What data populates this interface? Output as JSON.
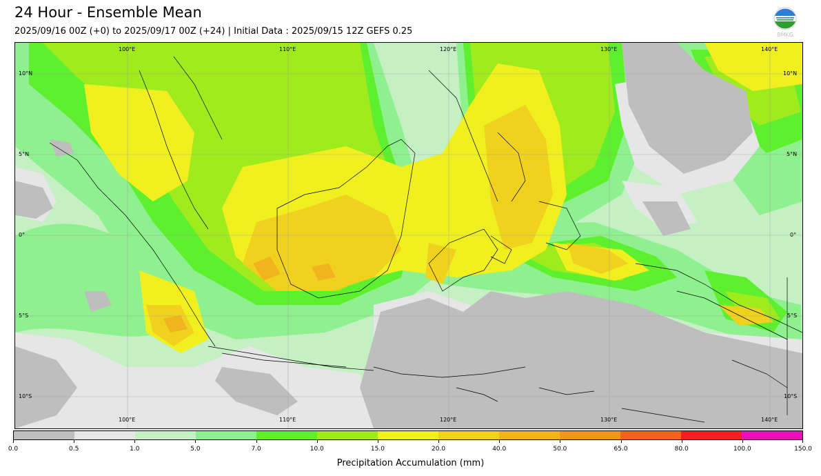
{
  "header": {
    "title": "24 Hour - Ensemble Mean",
    "subtitle": "2025/09/16 00Z (+0) to 2025/09/17 00Z (+24) | Initial Data : 2025/09/15 12Z GEFS 0.25",
    "logo_text": "BMKG"
  },
  "map": {
    "lon_labels": [
      "100°E",
      "110°E",
      "120°E",
      "130°E",
      "140°E"
    ],
    "lat_labels": [
      "10°N",
      "5°N",
      "0°",
      "5°S",
      "10°S"
    ],
    "ocean_color": "#c4f0c4"
  },
  "colorbar": {
    "colors": [
      "#bebebe",
      "#e6e6e6",
      "#c4f0c4",
      "#8ef08e",
      "#5ef02e",
      "#a0eb1e",
      "#f0f020",
      "#f0d21e",
      "#f0b41e",
      "#f0961e",
      "#f0641e",
      "#f02020",
      "#e614b4"
    ],
    "ticks": [
      "0.0",
      "0.5",
      "1.0",
      "5.0",
      "7.0",
      "10.0",
      "15.0",
      "20.0",
      "40.0",
      "50.0",
      "65.0",
      "80.0",
      "100.0",
      "150.0"
    ],
    "label": "Precipitation Accumulation (mm)"
  }
}
